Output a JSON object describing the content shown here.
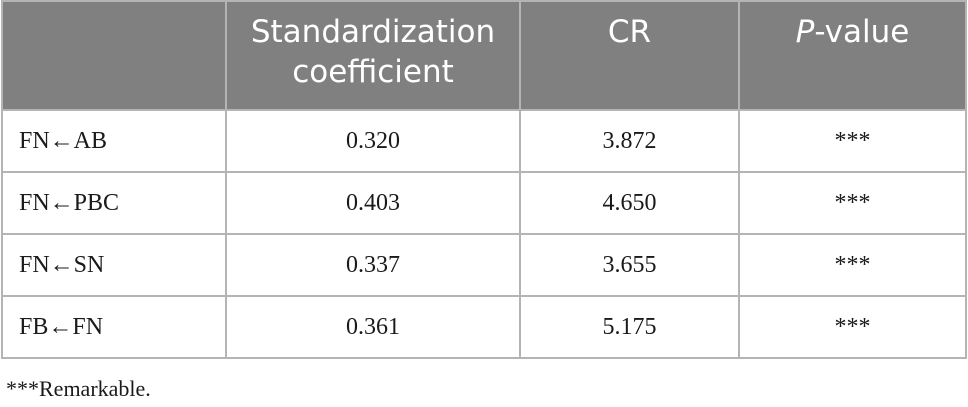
{
  "table": {
    "headers": {
      "col0": "",
      "col1": "Standardization coefficient",
      "col2": "CR",
      "col3_italic": "P",
      "col3_rest": "-value"
    },
    "rows": [
      {
        "path": "FN←AB",
        "coefficient": "0.320",
        "cr": "3.872",
        "p": "***"
      },
      {
        "path": "FN←PBC",
        "coefficient": "0.403",
        "cr": "4.650",
        "p": "***"
      },
      {
        "path": "FN←SN",
        "coefficient": "0.337",
        "cr": "3.655",
        "p": "***"
      },
      {
        "path": "FB←FN",
        "coefficient": "0.361",
        "cr": "5.175",
        "p": "***"
      }
    ]
  },
  "footnote": "***Remarkable."
}
